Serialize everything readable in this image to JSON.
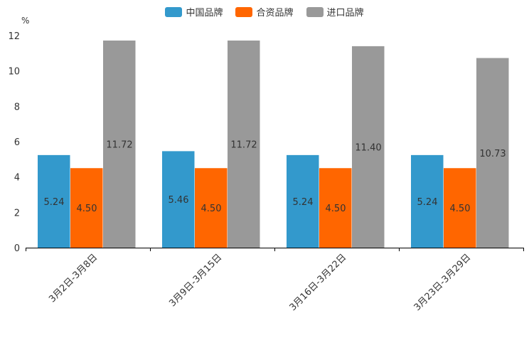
{
  "chart_data": {
    "type": "bar",
    "unit": "%",
    "categories": [
      "3月2日-3月8日",
      "3月9日-3月15日",
      "3月16日-3月22日",
      "3月23日-3月29日"
    ],
    "series": [
      {
        "name": "中国品牌",
        "color": "#3399cc",
        "values": [
          5.24,
          5.46,
          5.24,
          5.24
        ]
      },
      {
        "name": "合资品牌",
        "color": "#ff6600",
        "values": [
          4.5,
          4.5,
          4.5,
          4.5
        ]
      },
      {
        "name": "进口品牌",
        "color": "#999999",
        "values": [
          11.72,
          11.72,
          11.4,
          10.73
        ]
      }
    ],
    "ylim": [
      0,
      12
    ],
    "yticks": [
      "0",
      "2",
      "4",
      "6",
      "8",
      "10",
      "12"
    ],
    "legend_position": "top-center"
  }
}
